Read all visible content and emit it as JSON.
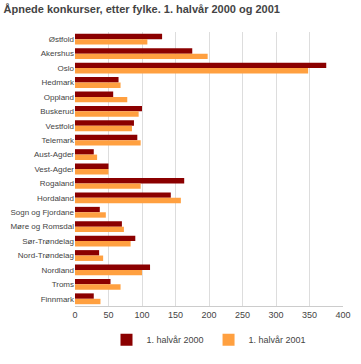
{
  "chart_data": {
    "type": "bar",
    "orientation": "horizontal",
    "title": "Åpnede konkurser, etter fylke. 1. halvår 2000 og 2001",
    "categories": [
      "Østfold",
      "Akershus",
      "Oslo",
      "Hedmark",
      "Oppland",
      "Buskerud",
      "Vestfold",
      "Telemark",
      "Aust-Agder",
      "Vest-Agder",
      "Rogaland",
      "Hordaland",
      "Sogn og Fjordane",
      "Møre og Romsdal",
      "Sør-Trøndelag",
      "Nord-Trøndelag",
      "Nordland",
      "Troms",
      "Finnmark"
    ],
    "series": [
      {
        "name": "1. halvår 2000",
        "color": "#8B0000",
        "values": [
          130,
          175,
          375,
          65,
          57,
          100,
          88,
          93,
          28,
          50,
          163,
          143,
          37,
          70,
          90,
          36,
          112,
          53,
          28
        ]
      },
      {
        "name": "1. halvår 2001",
        "color": "#FFA040",
        "values": [
          108,
          198,
          348,
          68,
          78,
          95,
          85,
          98,
          33,
          50,
          98,
          158,
          46,
          73,
          83,
          42,
          100,
          68,
          38
        ]
      }
    ],
    "xlim": [
      0,
      400
    ],
    "xticks": [
      0,
      50,
      100,
      150,
      200,
      250,
      300,
      350,
      400
    ],
    "grid": true,
    "legend": "bottom"
  }
}
